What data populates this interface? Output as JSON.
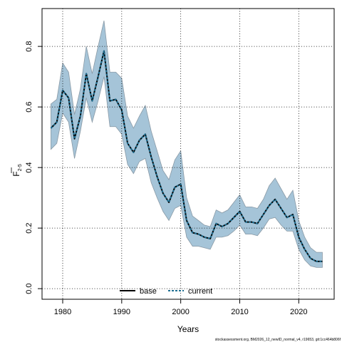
{
  "chart_data": {
    "type": "line",
    "xlabel": "Years",
    "ylabel": "F",
    "ylabel_sub": "2-5",
    "xlim": [
      1976.5,
      2026
    ],
    "ylim": [
      -0.035,
      0.925
    ],
    "xticks": [
      1980,
      1990,
      2000,
      2010,
      2020
    ],
    "yticks": [
      0.0,
      0.2,
      0.4,
      0.6,
      0.8
    ],
    "ytick_labels": [
      "0.0",
      "0.2",
      "0.4",
      "0.6",
      "0.8"
    ],
    "grid": true,
    "legend_position": "bottom-center",
    "band_color": "#a5c4d8",
    "band_edge_color": "#8a9aa6",
    "x": [
      1978,
      1979,
      1980,
      1981,
      1982,
      1983,
      1984,
      1985,
      1986,
      1987,
      1988,
      1989,
      1990,
      1991,
      1992,
      1993,
      1994,
      1995,
      1996,
      1997,
      1998,
      1999,
      2000,
      2001,
      2002,
      2003,
      2004,
      2005,
      2006,
      2007,
      2008,
      2009,
      2010,
      2011,
      2012,
      2013,
      2014,
      2015,
      2016,
      2017,
      2018,
      2019,
      2020,
      2021,
      2022,
      2023,
      2024
    ],
    "series": [
      {
        "name": "base",
        "style": "solid",
        "color": "#000000",
        "values": [
          0.53,
          0.55,
          0.655,
          0.63,
          0.495,
          0.57,
          0.71,
          0.62,
          0.7,
          0.785,
          0.62,
          0.625,
          0.59,
          0.48,
          0.45,
          0.49,
          0.51,
          0.435,
          0.37,
          0.315,
          0.285,
          0.335,
          0.345,
          0.225,
          0.185,
          0.18,
          0.17,
          0.165,
          0.215,
          0.205,
          0.215,
          0.235,
          0.255,
          0.22,
          0.22,
          0.215,
          0.245,
          0.275,
          0.295,
          0.265,
          0.235,
          0.245,
          0.17,
          0.13,
          0.1,
          0.09,
          0.09
        ]
      },
      {
        "name": "current",
        "style": "dashed",
        "color": "#1e6e91",
        "values": [
          0.53,
          0.55,
          0.655,
          0.63,
          0.495,
          0.57,
          0.71,
          0.62,
          0.7,
          0.785,
          0.62,
          0.625,
          0.59,
          0.48,
          0.45,
          0.49,
          0.51,
          0.435,
          0.37,
          0.315,
          0.285,
          0.335,
          0.345,
          0.225,
          0.185,
          0.18,
          0.17,
          0.165,
          0.215,
          0.205,
          0.215,
          0.235,
          0.255,
          0.22,
          0.22,
          0.215,
          0.245,
          0.275,
          0.295,
          0.265,
          0.235,
          0.245,
          0.17,
          0.13,
          0.1,
          0.09,
          0.09
        ]
      }
    ],
    "band": {
      "lower": [
        0.46,
        0.48,
        0.58,
        0.55,
        0.43,
        0.52,
        0.63,
        0.55,
        0.62,
        0.7,
        0.535,
        0.535,
        0.51,
        0.41,
        0.38,
        0.42,
        0.43,
        0.35,
        0.3,
        0.255,
        0.225,
        0.265,
        0.275,
        0.17,
        0.14,
        0.14,
        0.135,
        0.13,
        0.17,
        0.17,
        0.175,
        0.19,
        0.21,
        0.18,
        0.18,
        0.175,
        0.2,
        0.23,
        0.235,
        0.21,
        0.19,
        0.19,
        0.13,
        0.095,
        0.075,
        0.07,
        0.07
      ],
      "upper": [
        0.61,
        0.625,
        0.745,
        0.715,
        0.575,
        0.66,
        0.8,
        0.71,
        0.8,
        0.885,
        0.715,
        0.715,
        0.695,
        0.57,
        0.53,
        0.57,
        0.605,
        0.52,
        0.455,
        0.39,
        0.36,
        0.425,
        0.455,
        0.3,
        0.24,
        0.225,
        0.21,
        0.205,
        0.26,
        0.25,
        0.26,
        0.285,
        0.31,
        0.27,
        0.27,
        0.265,
        0.295,
        0.34,
        0.365,
        0.33,
        0.295,
        0.325,
        0.225,
        0.17,
        0.135,
        0.12,
        0.12
      ]
    },
    "footer": "stockassessment.org, BM2026_12_newID_normal_v4, r19653, git:1cc464b806f"
  }
}
